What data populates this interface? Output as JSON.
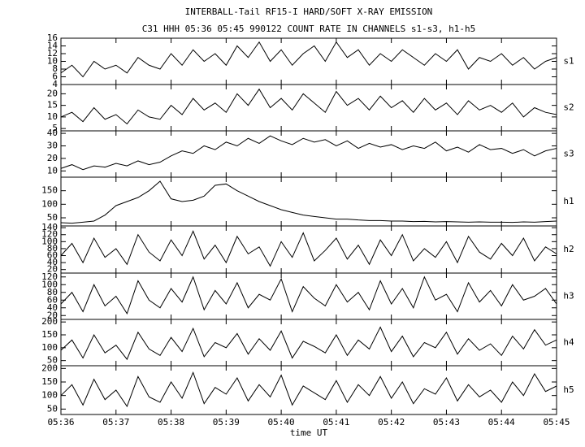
{
  "chart_data": [
    {
      "type": "line",
      "title": "INTERBALL-Tail RF15-I HARD/SOFT X-RAY EMISSION",
      "subtitle": "C31 HHH 05:36 05:45 990122  COUNT RATE IN CHANNELS s1-s3, h1-h5",
      "x": [
        336,
        336.2,
        336.4,
        336.6,
        336.8,
        337,
        337.2,
        337.4,
        337.6,
        337.8,
        338,
        338.2,
        338.4,
        338.6,
        338.8,
        339,
        339.2,
        339.4,
        339.6,
        339.8,
        340,
        340.2,
        340.4,
        340.6,
        340.8,
        341,
        341.2,
        341.4,
        341.6,
        341.8,
        342,
        342.2,
        342.4,
        342.6,
        342.8,
        343,
        343.2,
        343.4,
        343.6,
        343.8,
        344,
        344.2,
        344.4,
        344.6,
        344.8,
        345
      ],
      "series": [
        {
          "name": "s1",
          "color": "#000000",
          "values": [
            7,
            9,
            6,
            10,
            8,
            9,
            7,
            11,
            9,
            8,
            12,
            9,
            13,
            10,
            12,
            9,
            14,
            11,
            15,
            10,
            13,
            9,
            12,
            14,
            10,
            15,
            11,
            13,
            9,
            12,
            10,
            13,
            11,
            9,
            12,
            10,
            13,
            8,
            11,
            10,
            12,
            9,
            11,
            8,
            10,
            11
          ]
        }
      ],
      "xlim": [
        336,
        345
      ],
      "ylim": [
        4,
        16
      ],
      "yticks": [
        4,
        6,
        8,
        10,
        12,
        14,
        16
      ]
    },
    {
      "type": "line",
      "x": [
        336,
        336.2,
        336.4,
        336.6,
        336.8,
        337,
        337.2,
        337.4,
        337.6,
        337.8,
        338,
        338.2,
        338.4,
        338.6,
        338.8,
        339,
        339.2,
        339.4,
        339.6,
        339.8,
        340,
        340.2,
        340.4,
        340.6,
        340.8,
        341,
        341.2,
        341.4,
        341.6,
        341.8,
        342,
        342.2,
        342.4,
        342.6,
        342.8,
        343,
        343.2,
        343.4,
        343.6,
        343.8,
        344,
        344.2,
        344.4,
        344.6,
        344.8,
        345
      ],
      "series": [
        {
          "name": "s2",
          "color": "#000000",
          "values": [
            10,
            12,
            8,
            14,
            9,
            11,
            7,
            13,
            10,
            9,
            15,
            11,
            18,
            13,
            16,
            12,
            20,
            15,
            22,
            14,
            18,
            13,
            20,
            16,
            12,
            21,
            15,
            18,
            13,
            19,
            14,
            17,
            12,
            18,
            13,
            16,
            11,
            17,
            13,
            15,
            12,
            16,
            10,
            14,
            12,
            11
          ]
        }
      ],
      "xlim": [
        336,
        345
      ],
      "ylim": [
        4,
        24
      ],
      "yticks": [
        5,
        10,
        15,
        20
      ]
    },
    {
      "type": "line",
      "x": [
        336,
        336.2,
        336.4,
        336.6,
        336.8,
        337,
        337.2,
        337.4,
        337.6,
        337.8,
        338,
        338.2,
        338.4,
        338.6,
        338.8,
        339,
        339.2,
        339.4,
        339.6,
        339.8,
        340,
        340.2,
        340.4,
        340.6,
        340.8,
        341,
        341.2,
        341.4,
        341.6,
        341.8,
        342,
        342.2,
        342.4,
        342.6,
        342.8,
        343,
        343.2,
        343.4,
        343.6,
        343.8,
        344,
        344.2,
        344.4,
        344.6,
        344.8,
        345
      ],
      "series": [
        {
          "name": "s3",
          "color": "#000000",
          "values": [
            12,
            15,
            11,
            14,
            13,
            16,
            14,
            18,
            15,
            17,
            22,
            26,
            24,
            30,
            27,
            33,
            30,
            36,
            32,
            38,
            34,
            31,
            36,
            33,
            35,
            30,
            34,
            28,
            32,
            29,
            31,
            27,
            30,
            28,
            33,
            26,
            29,
            25,
            31,
            27,
            28,
            24,
            27,
            22,
            26,
            28
          ]
        }
      ],
      "xlim": [
        336,
        345
      ],
      "ylim": [
        5,
        42
      ],
      "yticks": [
        10,
        20,
        30,
        40
      ]
    },
    {
      "type": "line",
      "x": [
        336,
        336.2,
        336.4,
        336.6,
        336.8,
        337,
        337.2,
        337.4,
        337.6,
        337.8,
        338,
        338.2,
        338.4,
        338.6,
        338.8,
        339,
        339.2,
        339.4,
        339.6,
        339.8,
        340,
        340.2,
        340.4,
        340.6,
        340.8,
        341,
        341.2,
        341.4,
        341.6,
        341.8,
        342,
        342.2,
        342.4,
        342.6,
        342.8,
        343,
        343.2,
        343.4,
        343.6,
        343.8,
        344,
        344.2,
        344.4,
        344.6,
        344.8,
        345
      ],
      "series": [
        {
          "name": "h1",
          "color": "#000000",
          "values": [
            32,
            30,
            34,
            38,
            60,
            95,
            110,
            125,
            150,
            185,
            120,
            110,
            115,
            130,
            170,
            175,
            150,
            130,
            110,
            95,
            80,
            70,
            60,
            55,
            50,
            45,
            45,
            42,
            40,
            40,
            38,
            38,
            36,
            37,
            35,
            36,
            35,
            34,
            35,
            34,
            34,
            33,
            35,
            34,
            36,
            38
          ]
        }
      ],
      "xlim": [
        336,
        345
      ],
      "ylim": [
        20,
        200
      ],
      "yticks": [
        50,
        100,
        150
      ]
    },
    {
      "type": "line",
      "x": [
        336,
        336.2,
        336.4,
        336.6,
        336.8,
        337,
        337.2,
        337.4,
        337.6,
        337.8,
        338,
        338.2,
        338.4,
        338.6,
        338.8,
        339,
        339.2,
        339.4,
        339.6,
        339.8,
        340,
        340.2,
        340.4,
        340.6,
        340.8,
        341,
        341.2,
        341.4,
        341.6,
        341.8,
        342,
        342.2,
        342.4,
        342.6,
        342.8,
        343,
        343.2,
        343.4,
        343.6,
        343.8,
        344,
        344.2,
        344.4,
        344.6,
        344.8,
        345
      ],
      "series": [
        {
          "name": "h2",
          "color": "#000000",
          "values": [
            60,
            95,
            40,
            110,
            55,
            80,
            35,
            120,
            70,
            45,
            105,
            60,
            130,
            50,
            90,
            40,
            115,
            65,
            85,
            30,
            100,
            55,
            125,
            45,
            75,
            110,
            50,
            90,
            35,
            105,
            60,
            120,
            45,
            80,
            55,
            100,
            40,
            115,
            70,
            50,
            95,
            60,
            110,
            45,
            85,
            65
          ]
        }
      ],
      "xlim": [
        336,
        345
      ],
      "ylim": [
        10,
        145
      ],
      "yticks": [
        20,
        40,
        60,
        80,
        100,
        120,
        140
      ]
    },
    {
      "type": "line",
      "x": [
        336,
        336.2,
        336.4,
        336.6,
        336.8,
        337,
        337.2,
        337.4,
        337.6,
        337.8,
        338,
        338.2,
        338.4,
        338.6,
        338.8,
        339,
        339.2,
        339.4,
        339.6,
        339.8,
        340,
        340.2,
        340.4,
        340.6,
        340.8,
        341,
        341.2,
        341.4,
        341.6,
        341.8,
        342,
        342.2,
        342.4,
        342.6,
        342.8,
        343,
        343.2,
        343.4,
        343.6,
        343.8,
        344,
        344.2,
        344.4,
        344.6,
        344.8,
        345
      ],
      "series": [
        {
          "name": "h3",
          "color": "#000000",
          "values": [
            50,
            80,
            30,
            100,
            45,
            70,
            25,
            110,
            60,
            40,
            90,
            55,
            120,
            35,
            85,
            50,
            105,
            40,
            75,
            60,
            115,
            30,
            95,
            65,
            45,
            100,
            55,
            80,
            35,
            110,
            50,
            90,
            40,
            120,
            60,
            75,
            30,
            105,
            55,
            85,
            45,
            100,
            60,
            70,
            90,
            50
          ]
        }
      ],
      "xlim": [
        336,
        345
      ],
      "ylim": [
        10,
        130
      ],
      "yticks": [
        20,
        40,
        60,
        80,
        100,
        120
      ]
    },
    {
      "type": "line",
      "x": [
        336,
        336.2,
        336.4,
        336.6,
        336.8,
        337,
        337.2,
        337.4,
        337.6,
        337.8,
        338,
        338.2,
        338.4,
        338.6,
        338.8,
        339,
        339.2,
        339.4,
        339.6,
        339.8,
        340,
        340.2,
        340.4,
        340.6,
        340.8,
        341,
        341.2,
        341.4,
        341.6,
        341.8,
        342,
        342.2,
        342.4,
        342.6,
        342.8,
        343,
        343.2,
        343.4,
        343.6,
        343.8,
        344,
        344.2,
        344.4,
        344.6,
        344.8,
        345
      ],
      "series": [
        {
          "name": "h4",
          "color": "#000000",
          "values": [
            90,
            130,
            60,
            150,
            80,
            110,
            55,
            160,
            95,
            70,
            140,
            85,
            175,
            65,
            120,
            100,
            155,
            75,
            135,
            90,
            165,
            60,
            125,
            105,
            80,
            150,
            70,
            130,
            95,
            180,
            85,
            145,
            65,
            120,
            100,
            160,
            75,
            135,
            90,
            115,
            70,
            145,
            95,
            170,
            110,
            130
          ]
        }
      ],
      "xlim": [
        336,
        345
      ],
      "ylim": [
        30,
        210
      ],
      "yticks": [
        50,
        100,
        150,
        200
      ]
    },
    {
      "type": "line",
      "xlabel": "time UT",
      "x": [
        336,
        336.2,
        336.4,
        336.6,
        336.8,
        337,
        337.2,
        337.4,
        337.6,
        337.8,
        338,
        338.2,
        338.4,
        338.6,
        338.8,
        339,
        339.2,
        339.4,
        339.6,
        339.8,
        340,
        340.2,
        340.4,
        340.6,
        340.8,
        341,
        341.2,
        341.4,
        341.6,
        341.8,
        342,
        342.2,
        342.4,
        342.6,
        342.8,
        343,
        343.2,
        343.4,
        343.6,
        343.8,
        344,
        344.2,
        344.4,
        344.6,
        344.8,
        345
      ],
      "series": [
        {
          "name": "h5",
          "color": "#000000",
          "values": [
            100,
            140,
            65,
            160,
            85,
            120,
            60,
            170,
            95,
            75,
            150,
            90,
            185,
            70,
            130,
            105,
            165,
            80,
            140,
            95,
            175,
            65,
            135,
            110,
            85,
            155,
            75,
            140,
            100,
            170,
            90,
            150,
            70,
            125,
            105,
            165,
            80,
            140,
            95,
            120,
            75,
            150,
            100,
            180,
            115,
            135
          ]
        }
      ],
      "xlim": [
        336,
        345
      ],
      "ylim": [
        30,
        210
      ],
      "yticks": [
        50,
        100,
        150,
        200
      ],
      "xticks": [
        {
          "value": 336,
          "label": "05:36"
        },
        {
          "value": 337,
          "label": "05:37"
        },
        {
          "value": 338,
          "label": "05:38"
        },
        {
          "value": 339,
          "label": "05:39"
        },
        {
          "value": 340,
          "label": "05:40"
        },
        {
          "value": 341,
          "label": "05:41"
        },
        {
          "value": 342,
          "label": "05:42"
        },
        {
          "value": 343,
          "label": "05:43"
        },
        {
          "value": 344,
          "label": "05:44"
        },
        {
          "value": 345,
          "label": "05:45"
        }
      ]
    }
  ]
}
